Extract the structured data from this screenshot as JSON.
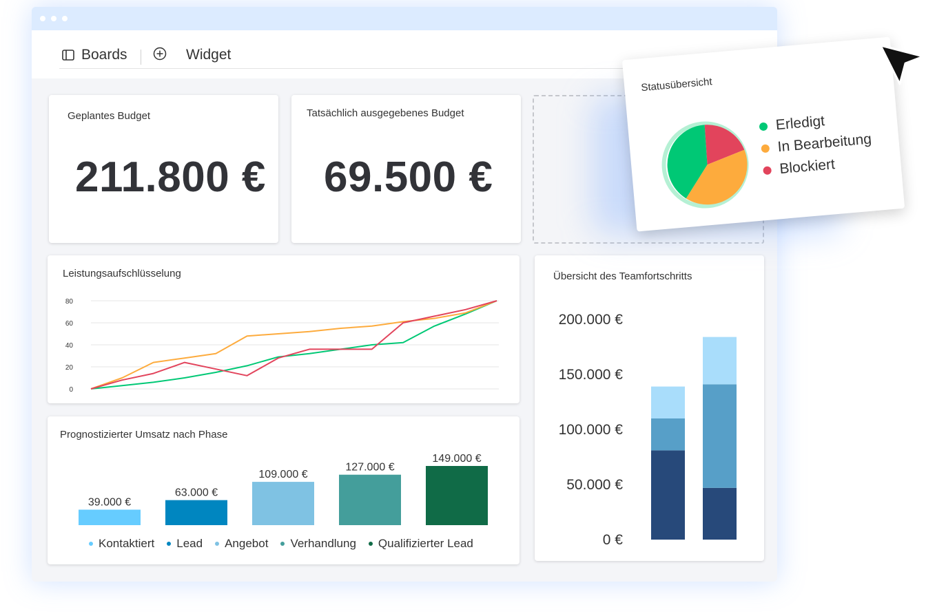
{
  "toolbar": {
    "boards_label": "Boards",
    "widget_label": "Widget"
  },
  "icons": {
    "boards": "sidebar-panel-icon",
    "add": "plus-circle-icon",
    "cursor": "arrow-pointer-icon"
  },
  "cards": {
    "planned_budget": {
      "title": "Geplantes Budget",
      "value": "211.800 €"
    },
    "actual_budget": {
      "title": "Tatsächlich ausgegebenes Budget",
      "value": "69.500 €"
    },
    "performance": {
      "title": "Leistungsaufschlüsselung"
    },
    "revenue": {
      "title": "Prognostizierter Umsatz nach Phase"
    },
    "team": {
      "title": "Übersicht des Teamfortschritts"
    },
    "status": {
      "title": "Statusübersicht"
    }
  },
  "chart_data": [
    {
      "type": "pie",
      "title": "Statusübersicht",
      "labels": [
        "Erledigt",
        "In Bearbeitung",
        "Blockiert"
      ],
      "values": [
        40,
        40,
        20
      ],
      "colors": [
        "#00c875",
        "#fdab3d",
        "#e2445c"
      ],
      "legend": "right"
    },
    {
      "type": "line",
      "title": "Leistungsaufschlüsselung",
      "x": [
        0,
        1,
        2,
        3,
        4,
        5,
        6,
        7,
        8,
        9,
        10,
        11,
        12,
        13
      ],
      "yticks": [
        "0",
        "20",
        "40",
        "60",
        "80"
      ],
      "ylim": [
        0,
        80
      ],
      "grid": true,
      "series": [
        {
          "color": "#00c875",
          "values": [
            0,
            3,
            6,
            10,
            15,
            21,
            29,
            32,
            36,
            40,
            42,
            57,
            68,
            80
          ]
        },
        {
          "color": "#fdab3d",
          "values": [
            0,
            10,
            24,
            28,
            32,
            48,
            50,
            52,
            55,
            57,
            61,
            64,
            69,
            80
          ]
        },
        {
          "color": "#e2445c",
          "values": [
            0,
            8,
            14,
            24,
            18,
            12,
            28,
            36,
            36,
            36,
            60,
            66,
            72,
            80
          ]
        }
      ]
    },
    {
      "type": "bar",
      "title": "Prognostizierter Umsatz nach Phase",
      "categories": [
        "Kontaktiert",
        "Lead",
        "Angebot",
        "Verhandlung",
        "Qualifizierter Lead"
      ],
      "values": [
        39000,
        63000,
        109000,
        127000,
        149000
      ],
      "value_labels": [
        "39.000 €",
        "63.000 €",
        "109.000 €",
        "127.000 €",
        "149.000 €"
      ],
      "colors": [
        "#66ccff",
        "#0086c0",
        "#7fc2e3",
        "#449e9b",
        "#106b47"
      ],
      "legend": "bottom"
    },
    {
      "type": "bar",
      "stacked": true,
      "title": "Übersicht des Teamfortschritts",
      "yticks": [
        "0 €",
        "50.000 €",
        "100.000 €",
        "150.000 €",
        "200.000 €"
      ],
      "ylim": [
        0,
        200000
      ],
      "series": [
        {
          "color": "#27497a",
          "values": [
            81000,
            47000
          ]
        },
        {
          "color": "#579fc8",
          "values": [
            29000,
            94000
          ]
        },
        {
          "color": "#a9ddfb",
          "values": [
            29000,
            43000
          ]
        }
      ]
    }
  ]
}
